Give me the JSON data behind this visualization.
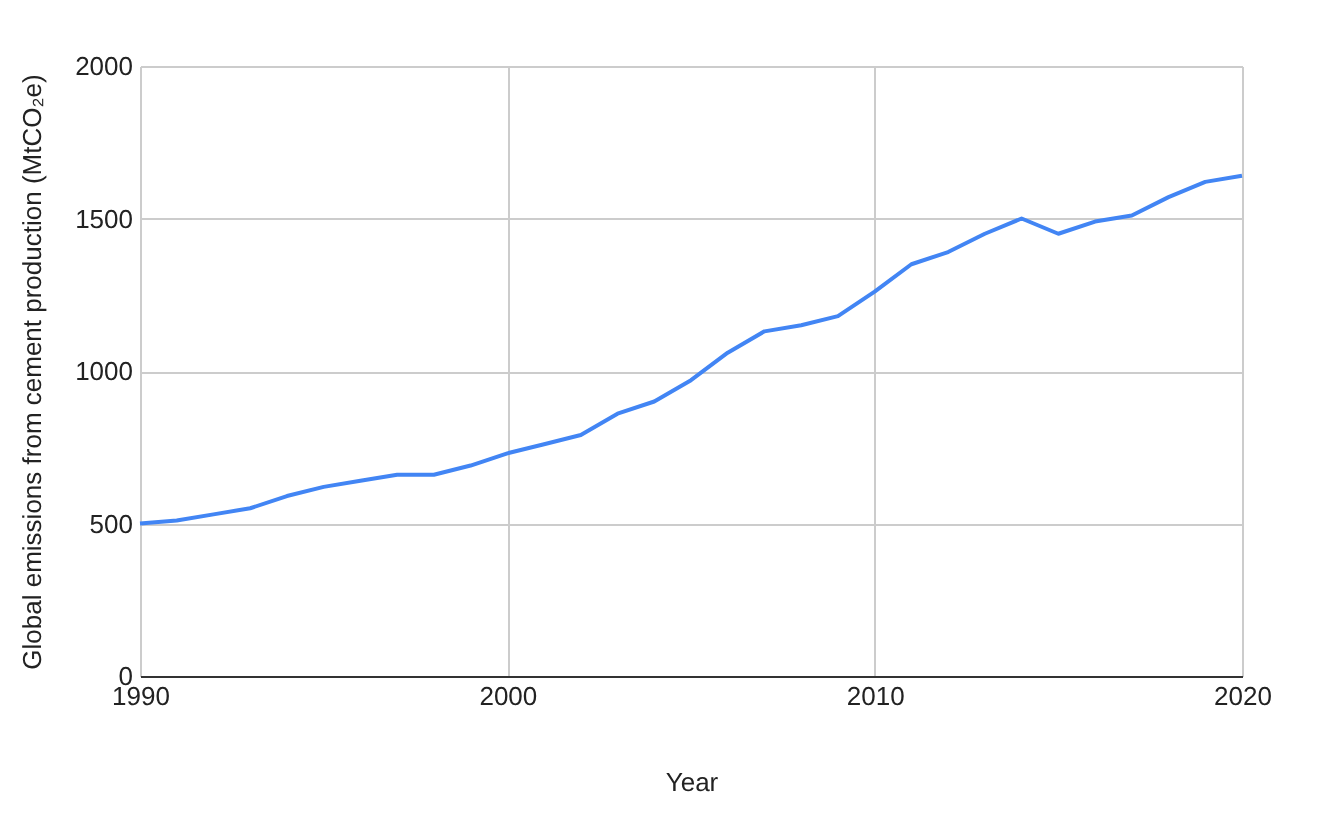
{
  "chart_data": {
    "type": "line",
    "xlabel": "Year",
    "ylabel": "Global emissions from cement production (MtCO₂e)",
    "x": [
      1990,
      1991,
      1992,
      1993,
      1994,
      1995,
      1996,
      1997,
      1998,
      1999,
      2000,
      2001,
      2002,
      2003,
      2004,
      2005,
      2006,
      2007,
      2008,
      2009,
      2010,
      2011,
      2012,
      2013,
      2014,
      2015,
      2016,
      2017,
      2018,
      2019,
      2020
    ],
    "series": [
      {
        "color": "#4285f4",
        "values": [
          500,
          510,
          530,
          550,
          590,
          620,
          640,
          660,
          660,
          690,
          730,
          760,
          790,
          860,
          900,
          970,
          1060,
          1130,
          1150,
          1180,
          1260,
          1350,
          1390,
          1450,
          1500,
          1450,
          1490,
          1510,
          1570,
          1620,
          1640
        ]
      }
    ],
    "xlim": [
      1990,
      2020
    ],
    "xticks": [
      1990,
      2000,
      2010,
      2020
    ],
    "ylim": [
      0,
      2000
    ],
    "yticks": [
      0,
      500,
      1000,
      1500,
      2000
    ],
    "grid": true,
    "legend": false,
    "marker": "none",
    "line_style": "solid"
  }
}
